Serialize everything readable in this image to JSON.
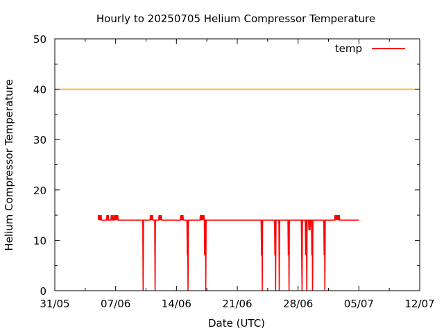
{
  "chart_data": {
    "type": "line",
    "title": "Hourly to 20250705 Helium Compressor Temperature",
    "xlabel": "Date (UTC)",
    "ylabel": "Helium Compressor Temperature",
    "xlim": [
      "2025-05-31",
      "2025-07-12"
    ],
    "ylim": [
      0,
      50
    ],
    "x_ticks": [
      "31/05",
      "07/06",
      "14/06",
      "21/06",
      "28/06",
      "05/07",
      "12/07"
    ],
    "y_ticks": [
      "0",
      "10",
      "20",
      "30",
      "40",
      "50"
    ],
    "grid": false,
    "legend_position": "top-right",
    "threshold": {
      "value": 40,
      "color": "#ffa500"
    },
    "series": [
      {
        "name": "temp",
        "color": "#ff0000",
        "default_value": 14,
        "start": "2025-06-05T00:00",
        "end": "2025-07-05T00:00",
        "spikes_high": [
          {
            "from": "2025-06-05T00:00",
            "to": "2025-06-05T09:00",
            "value": 15
          },
          {
            "from": "2025-06-06T00:00",
            "to": "2025-06-06T05:00",
            "value": 15
          },
          {
            "from": "2025-06-06T12:00",
            "to": "2025-06-06T17:00",
            "value": 15
          },
          {
            "from": "2025-06-06T20:00",
            "to": "2025-06-07T06:00",
            "value": 15
          },
          {
            "from": "2025-06-11T00:00",
            "to": "2025-06-11T06:00",
            "value": 15
          },
          {
            "from": "2025-06-12T00:00",
            "to": "2025-06-12T06:00",
            "value": 15
          },
          {
            "from": "2025-06-14T12:00",
            "to": "2025-06-14T18:00",
            "value": 15
          },
          {
            "from": "2025-06-16T18:00",
            "to": "2025-06-17T06:00",
            "value": 15
          },
          {
            "from": "2025-07-02T06:00",
            "to": "2025-07-02T18:00",
            "value": 15
          }
        ],
        "dips": [
          {
            "at": "2025-06-10T04:00",
            "value": 0
          },
          {
            "at": "2025-06-11T13:00",
            "value": 0
          },
          {
            "at": "2025-06-15T06:00",
            "value": 7
          },
          {
            "at": "2025-06-15T08:00",
            "value": 0
          },
          {
            "at": "2025-06-17T06:00",
            "value": 7
          },
          {
            "at": "2025-06-17T09:00",
            "value": 0
          },
          {
            "at": "2025-06-23T19:00",
            "value": 7
          },
          {
            "at": "2025-06-23T21:00",
            "value": 0
          },
          {
            "at": "2025-06-25T08:00",
            "value": 7
          },
          {
            "at": "2025-06-25T10:00",
            "value": 0
          },
          {
            "at": "2025-06-25T20:00",
            "value": 0
          },
          {
            "at": "2025-06-26T21:00",
            "value": 7
          },
          {
            "at": "2025-06-26T23:00",
            "value": 0
          },
          {
            "at": "2025-06-28T10:00",
            "value": 7
          },
          {
            "at": "2025-06-28T11:00",
            "value": 0
          },
          {
            "at": "2025-06-28T21:00",
            "value": 7
          },
          {
            "at": "2025-06-29T00:00",
            "value": 0
          },
          {
            "at": "2025-06-29T06:00",
            "value": 12
          },
          {
            "at": "2025-06-29T09:00",
            "value": 12
          },
          {
            "at": "2025-06-29T14:00",
            "value": 7
          },
          {
            "at": "2025-06-29T16:00",
            "value": 0
          },
          {
            "at": "2025-07-01T00:00",
            "value": 7
          },
          {
            "at": "2025-07-01T02:00",
            "value": 0
          }
        ]
      }
    ]
  }
}
